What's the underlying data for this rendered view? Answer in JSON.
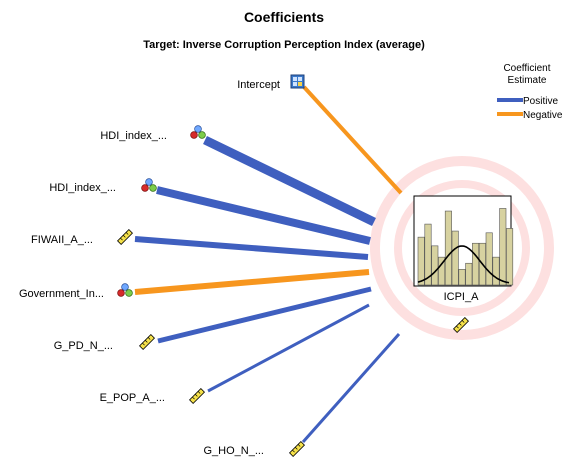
{
  "header": {
    "title": "Coefficients",
    "subtitle": "Target: Inverse Corruption Perception Index (average)"
  },
  "legend": {
    "title_line1": "Coefficient",
    "title_line2": "Estimate",
    "positive_label": "Positive",
    "negative_label": "Negative",
    "positive_color": "#3f5fbf",
    "negative_color": "#f7961e"
  },
  "target": {
    "label": "ICPI_A",
    "icon": "continuous-measure-icon",
    "histogram_heights": [
      0.55,
      0.7,
      0.45,
      0.32,
      0.85,
      0.62,
      0.18,
      0.25,
      0.48,
      0.48,
      0.6,
      0.32,
      0.88,
      0.65
    ],
    "ring_color": "#fde0e0"
  },
  "predictors": [
    {
      "label": "Intercept",
      "icon": "intercept-grid-icon",
      "sign": "negative",
      "weight": 4
    },
    {
      "label": "HDI_index_...",
      "icon": "nominal-set-icon",
      "sign": "positive",
      "weight": 9
    },
    {
      "label": "HDI_index_...",
      "icon": "nominal-set-icon",
      "sign": "positive",
      "weight": 8
    },
    {
      "label": "FIWAII_A_...",
      "icon": "ruler-icon",
      "sign": "positive",
      "weight": 6
    },
    {
      "label": "Government_In...",
      "icon": "nominal-set-icon",
      "sign": "negative",
      "weight": 6
    },
    {
      "label": "G_PD_N_...",
      "icon": "ruler-icon",
      "sign": "positive",
      "weight": 5
    },
    {
      "label": "E_POP_A_...",
      "icon": "ruler-icon",
      "sign": "positive",
      "weight": 3
    },
    {
      "label": "G_HO_N_...",
      "icon": "ruler-icon",
      "sign": "positive",
      "weight": 3
    }
  ]
}
